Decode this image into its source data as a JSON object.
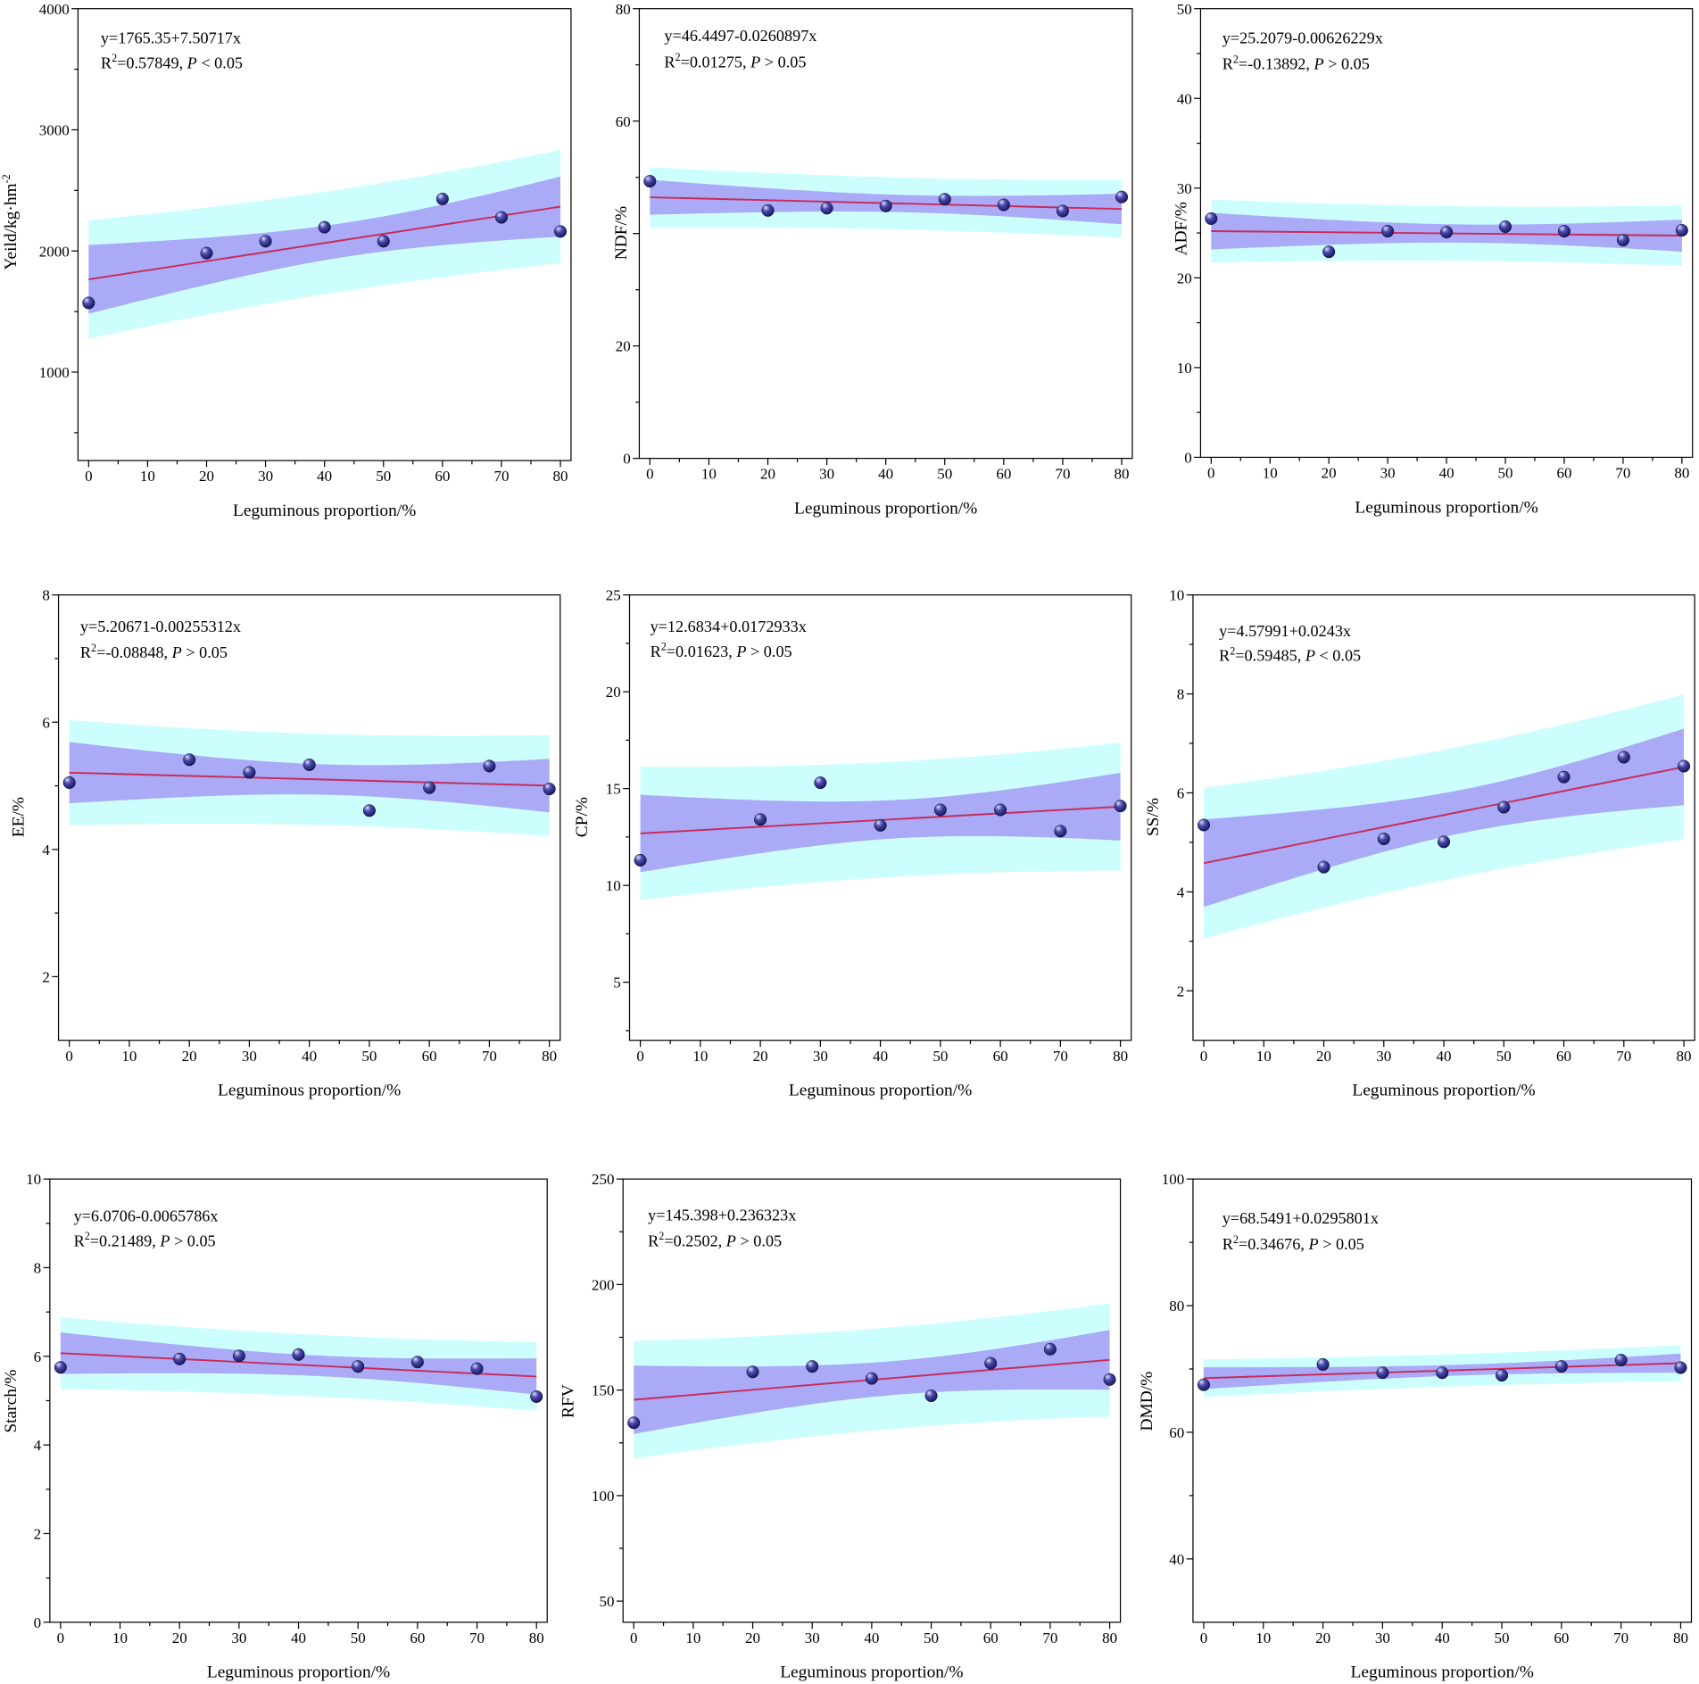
{
  "colors": {
    "prediction_band": "#ccfefe",
    "confidence_band": "#aaaaf6",
    "fit_line": "#c62c5b",
    "marker_dark": "#14145a",
    "marker_mid": "#4a4aab",
    "marker_light": "#dedeff",
    "axis": "#000000"
  },
  "chart_data": [
    {
      "type": "scatter",
      "xlabel": "Leguminous proportion/%",
      "ylabel": "Yeild/kg·hm",
      "ylabel_sup": "-2",
      "xlim": [
        -1.8,
        81.8
      ],
      "ylim": [
        270,
        4000
      ],
      "x_ticks": [
        0,
        10,
        20,
        30,
        40,
        50,
        60,
        70,
        80
      ],
      "x_major_step": 10,
      "x_minor_step": 5,
      "y_ticks": [
        1000,
        2000,
        3000,
        4000
      ],
      "y_major_step": 1000,
      "y_minor_step": 500,
      "grid": false,
      "x": [
        0,
        20,
        30,
        40,
        50,
        60,
        70,
        80
      ],
      "y": [
        1571,
        1982,
        2080,
        2196,
        2080,
        2429,
        2277,
        2161
      ],
      "fit": {
        "intercept": 1765.35,
        "slope": 7.50717
      },
      "equation": "y=1765.35+7.50717x",
      "r2_symbol": "R",
      "r2_exp": "2",
      "r2_text": "=0.57849, ",
      "p_symbol": "P",
      "p_text": " < 0.05"
    },
    {
      "type": "scatter",
      "xlabel": "Leguminous proportion/%",
      "ylabel": "NDF/%",
      "xlim": [
        -1.8,
        81.8
      ],
      "ylim": [
        0,
        80
      ],
      "x_ticks": [
        0,
        10,
        20,
        30,
        40,
        50,
        60,
        70,
        80
      ],
      "x_major_step": 10,
      "x_minor_step": 5,
      "y_ticks": [
        0,
        20,
        60,
        80
      ],
      "y_major_step": 20,
      "y_minor_step": 10,
      "grid": false,
      "x": [
        0,
        20,
        30,
        40,
        50,
        60,
        70,
        80
      ],
      "y": [
        49.3,
        44.1,
        44.5,
        44.9,
        46.1,
        45.1,
        44.0,
        46.5
      ],
      "fit": {
        "intercept": 46.4497,
        "slope": -0.0260897
      },
      "equation": "y=46.4497-0.0260897x",
      "r2_symbol": "R",
      "r2_exp": "2",
      "r2_text": "=0.01275, ",
      "p_symbol": "P",
      "p_text": " > 0.05"
    },
    {
      "type": "scatter",
      "xlabel": "Leguminous proportion/%",
      "ylabel": "ADF/%",
      "xlim": [
        -1.8,
        81.8
      ],
      "ylim": [
        0,
        50
      ],
      "x_ticks": [
        0,
        10,
        20,
        30,
        40,
        50,
        60,
        70,
        80
      ],
      "x_major_step": 10,
      "x_minor_step": 5,
      "y_ticks": [
        0,
        10,
        20,
        30,
        40,
        50
      ],
      "y_major_step": 10,
      "y_minor_step": 5,
      "grid": false,
      "x": [
        0,
        20,
        30,
        40,
        50,
        60,
        70,
        80
      ],
      "y": [
        26.6,
        22.9,
        25.2,
        25.1,
        25.7,
        25.2,
        24.2,
        25.3
      ],
      "fit": {
        "intercept": 25.2079,
        "slope": -0.00626229
      },
      "equation": "y=25.2079-0.00626229x",
      "r2_symbol": "R",
      "r2_exp": "2",
      "r2_text": "=-0.13892, ",
      "p_symbol": "P",
      "p_text": " > 0.05"
    },
    {
      "type": "scatter",
      "xlabel": "Leguminous proportion/%",
      "ylabel": "EE/%",
      "xlim": [
        -1.8,
        81.8
      ],
      "ylim": [
        1,
        8
      ],
      "x_ticks": [
        0,
        10,
        20,
        30,
        40,
        50,
        60,
        70,
        80
      ],
      "x_major_step": 10,
      "x_minor_step": 5,
      "y_ticks": [
        2,
        4,
        6,
        8
      ],
      "y_major_step": 2,
      "y_minor_step": 1,
      "grid": false,
      "x": [
        0,
        20,
        30,
        40,
        50,
        60,
        70,
        80
      ],
      "y": [
        5.05,
        5.41,
        5.21,
        5.33,
        4.61,
        4.97,
        5.31,
        4.95
      ],
      "fit": {
        "intercept": 5.20671,
        "slope": -0.00255312
      },
      "equation": "y=5.20671-0.00255312x",
      "r2_symbol": "R",
      "r2_exp": "2",
      "r2_text": "=-0.08848, ",
      "p_symbol": "P",
      "p_text": " > 0.05"
    },
    {
      "type": "scatter",
      "xlabel": "Leguminous proportion/%",
      "ylabel": "CP/%",
      "xlim": [
        -1.8,
        81.8
      ],
      "ylim": [
        2,
        25
      ],
      "x_ticks": [
        0,
        10,
        20,
        30,
        40,
        50,
        60,
        70,
        80
      ],
      "x_major_step": 10,
      "x_minor_step": 5,
      "y_ticks": [
        5,
        10,
        15,
        20,
        25
      ],
      "y_major_step": 5,
      "y_minor_step": 2.5,
      "grid": false,
      "x": [
        0,
        20,
        30,
        40,
        50,
        60,
        70,
        80
      ],
      "y": [
        11.3,
        13.4,
        15.3,
        13.1,
        13.9,
        13.9,
        12.8,
        14.1
      ],
      "fit": {
        "intercept": 12.6834,
        "slope": 0.0172933
      },
      "equation": "y=12.6834+0.0172933x",
      "r2_symbol": "R",
      "r2_exp": "2",
      "r2_text": "=0.01623, ",
      "p_symbol": "P",
      "p_text": " > 0.05"
    },
    {
      "type": "scatter",
      "xlabel": "Leguminous proportion/%",
      "ylabel": "SS/%",
      "xlim": [
        -1.8,
        81.8
      ],
      "ylim": [
        1,
        10
      ],
      "x_ticks": [
        0,
        10,
        20,
        30,
        40,
        50,
        60,
        70,
        80
      ],
      "x_major_step": 10,
      "x_minor_step": 5,
      "y_ticks": [
        2,
        4,
        6,
        8,
        10
      ],
      "y_major_step": 2,
      "y_minor_step": 1,
      "grid": false,
      "x": [
        0,
        20,
        30,
        40,
        50,
        60,
        70,
        80
      ],
      "y": [
        5.35,
        4.5,
        5.07,
        5.01,
        5.71,
        6.32,
        6.72,
        6.54
      ],
      "fit": {
        "intercept": 4.57991,
        "slope": 0.0243
      },
      "equation": "y=4.57991+0.0243x",
      "r2_symbol": "R",
      "r2_exp": "2",
      "r2_text": "=0.59485, ",
      "p_symbol": "P",
      "p_text": " < 0.05"
    },
    {
      "type": "scatter",
      "xlabel": "Leguminous proportion/%",
      "ylabel": "Starch/%",
      "xlim": [
        -1.8,
        81.8
      ],
      "ylim": [
        0,
        10
      ],
      "x_ticks": [
        0,
        10,
        20,
        30,
        40,
        50,
        60,
        70,
        80
      ],
      "x_major_step": 10,
      "x_minor_step": 5,
      "y_ticks": [
        0,
        2,
        4,
        6,
        8,
        10
      ],
      "y_major_step": 2,
      "y_minor_step": 1,
      "grid": false,
      "x": [
        0,
        20,
        30,
        40,
        50,
        60,
        70,
        80
      ],
      "y": [
        5.75,
        5.94,
        6.01,
        6.04,
        5.77,
        5.87,
        5.72,
        5.09
      ],
      "fit": {
        "intercept": 6.0706,
        "slope": -0.0065786
      },
      "equation": "y=6.0706-0.0065786x",
      "r2_symbol": "R",
      "r2_exp": "2",
      "r2_text": "=0.21489, ",
      "p_symbol": "P",
      "p_text": " > 0.05"
    },
    {
      "type": "scatter",
      "xlabel": "Leguminous proportion/%",
      "ylabel": "RFV",
      "xlim": [
        -1.8,
        81.8
      ],
      "ylim": [
        40,
        250
      ],
      "x_ticks": [
        0,
        10,
        20,
        30,
        40,
        50,
        60,
        70,
        80
      ],
      "x_major_step": 10,
      "x_minor_step": 5,
      "y_ticks": [
        50,
        100,
        150,
        200,
        250
      ],
      "y_major_step": 50,
      "y_minor_step": 25,
      "grid": false,
      "x": [
        0,
        20,
        30,
        40,
        50,
        60,
        70,
        80
      ],
      "y": [
        134.5,
        158.6,
        161.2,
        155.5,
        147.3,
        162.7,
        169.4,
        155.0
      ],
      "fit": {
        "intercept": 145.398,
        "slope": 0.236323
      },
      "equation": "y=145.398+0.236323x",
      "r2_symbol": "R",
      "r2_exp": "2",
      "r2_text": "=0.2502, ",
      "p_symbol": "P",
      "p_text": " > 0.05"
    },
    {
      "type": "scatter",
      "xlabel": "Leguminous proportion/%",
      "ylabel": "DMD/%",
      "xlim": [
        -1.8,
        81.8
      ],
      "ylim": [
        30,
        100
      ],
      "x_ticks": [
        0,
        10,
        20,
        30,
        40,
        50,
        60,
        70,
        80
      ],
      "x_major_step": 10,
      "x_minor_step": 5,
      "y_ticks": [
        40,
        60,
        80,
        100
      ],
      "y_major_step": 20,
      "y_minor_step": 10,
      "grid": false,
      "x": [
        0,
        20,
        30,
        40,
        50,
        60,
        70,
        80
      ],
      "y": [
        67.5,
        70.7,
        69.4,
        69.4,
        69.0,
        70.4,
        71.4,
        70.2
      ],
      "fit": {
        "intercept": 68.5491,
        "slope": 0.0295801
      },
      "equation": "y=68.5491+0.0295801x",
      "r2_symbol": "R",
      "r2_exp": "2",
      "r2_text": "=0.34676, ",
      "p_symbol": "P",
      "p_text": " > 0.05"
    }
  ]
}
